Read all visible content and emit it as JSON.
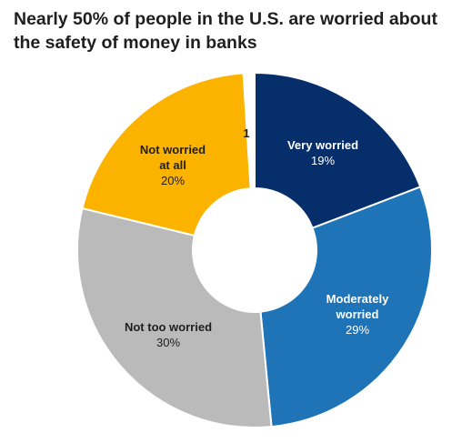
{
  "chart_data": {
    "type": "pie",
    "title": "Nearly 50% of people in the U.S. are worried about the safety of money in banks",
    "slices": [
      {
        "label": "Very worried",
        "value": 19,
        "value_label": "19%",
        "color": "#052e6b",
        "text_color": "#ffffff"
      },
      {
        "label": "Moderately worried",
        "value": 29,
        "value_label": "29%",
        "color": "#1e74b7",
        "text_color": "#ffffff"
      },
      {
        "label": "Not too worried",
        "value": 30,
        "value_label": "30%",
        "color": "#bababa",
        "text_color": "#1f1f1f"
      },
      {
        "label": "Not worried at all",
        "value": 20,
        "value_label": "20%",
        "color": "#fcb300",
        "text_color": "#1f1f1f"
      },
      {
        "label": "",
        "value": 1,
        "value_label": "1",
        "color": "#ffffff",
        "text_color": "#1f1f1f"
      }
    ]
  }
}
